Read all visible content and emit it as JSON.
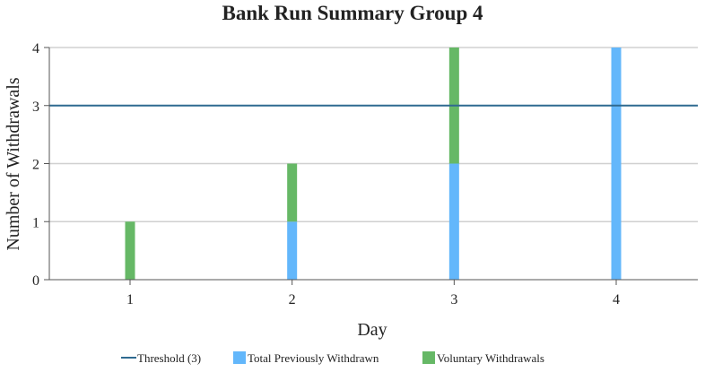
{
  "chart_data": {
    "type": "bar",
    "stacked": true,
    "title": "Bank Run Summary Group 4",
    "xlabel": "Day",
    "ylabel": "Number of Withdrawals",
    "categories": [
      "1",
      "2",
      "3",
      "4"
    ],
    "ylim": [
      0,
      4
    ],
    "yticks": [
      "0",
      "1",
      "2",
      "3",
      "4"
    ],
    "grid": true,
    "legend_position": "bottom",
    "series": [
      {
        "name": "Total Previously Withdrawn",
        "values": [
          0,
          1,
          2,
          4
        ],
        "color": "#63b7fb"
      },
      {
        "name": "Voluntary Withdrawals",
        "values": [
          1,
          1,
          2,
          0
        ],
        "color": "#66b866"
      }
    ],
    "threshold": {
      "name": "Threshold (3)",
      "value": 3,
      "color": "#2f6a90"
    }
  }
}
